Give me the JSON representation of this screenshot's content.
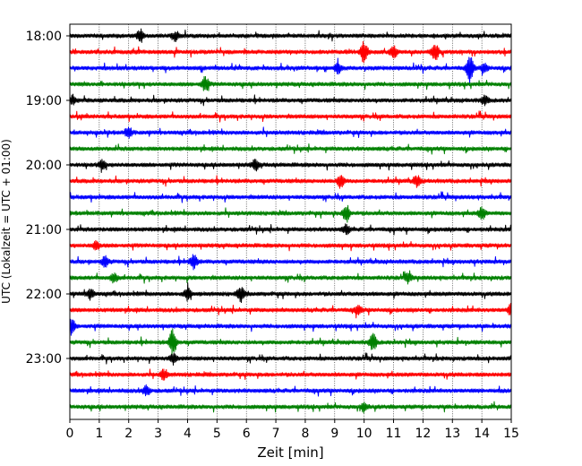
{
  "chart_data": {
    "type": "line",
    "title": "",
    "xlabel": "Zeit  [min]",
    "ylabel": "UTC (Lokalzeit = UTC + 01:00)",
    "xlim": [
      0,
      15
    ],
    "xticks": [
      0,
      1,
      2,
      3,
      4,
      5,
      6,
      7,
      8,
      9,
      10,
      11,
      12,
      13,
      14,
      15
    ],
    "x_grid": true,
    "y_grid": false,
    "y_tick_labels": [
      "18:00",
      "19:00",
      "20:00",
      "21:00",
      "22:00",
      "23:00"
    ],
    "trace_start_utc": "18:00",
    "trace_interval_minutes": 15,
    "trace_count": 24,
    "trace_colors": [
      "#000000",
      "#ff0000",
      "#0000ff",
      "#008000"
    ],
    "events": [
      {
        "trace": 0,
        "minute": 2.4,
        "amplitude": 0.7
      },
      {
        "trace": 0,
        "minute": 3.6,
        "amplitude": 0.5
      },
      {
        "trace": 1,
        "minute": 10.0,
        "amplitude": 1.3
      },
      {
        "trace": 1,
        "minute": 11.0,
        "amplitude": 0.6
      },
      {
        "trace": 1,
        "minute": 12.4,
        "amplitude": 1.2
      },
      {
        "trace": 2,
        "minute": 9.1,
        "amplitude": 0.7
      },
      {
        "trace": 2,
        "minute": 13.6,
        "amplitude": 1.6
      },
      {
        "trace": 2,
        "minute": 14.1,
        "amplitude": 0.5
      },
      {
        "trace": 3,
        "minute": 4.6,
        "amplitude": 0.9
      },
      {
        "trace": 4,
        "minute": 0.1,
        "amplitude": 0.5
      },
      {
        "trace": 4,
        "minute": 14.1,
        "amplitude": 0.5
      },
      {
        "trace": 6,
        "minute": 2.0,
        "amplitude": 0.6
      },
      {
        "trace": 8,
        "minute": 1.1,
        "amplitude": 0.5
      },
      {
        "trace": 8,
        "minute": 6.3,
        "amplitude": 0.6
      },
      {
        "trace": 9,
        "minute": 9.2,
        "amplitude": 0.8
      },
      {
        "trace": 9,
        "minute": 11.8,
        "amplitude": 0.6
      },
      {
        "trace": 11,
        "minute": 9.4,
        "amplitude": 1.0
      },
      {
        "trace": 11,
        "minute": 14.0,
        "amplitude": 0.7
      },
      {
        "trace": 12,
        "minute": 9.4,
        "amplitude": 0.5
      },
      {
        "trace": 13,
        "minute": 0.9,
        "amplitude": 0.5
      },
      {
        "trace": 14,
        "minute": 1.2,
        "amplitude": 0.6
      },
      {
        "trace": 14,
        "minute": 4.2,
        "amplitude": 0.9
      },
      {
        "trace": 15,
        "minute": 1.5,
        "amplitude": 0.5
      },
      {
        "trace": 15,
        "minute": 11.5,
        "amplitude": 0.5
      },
      {
        "trace": 16,
        "minute": 0.7,
        "amplitude": 0.6
      },
      {
        "trace": 16,
        "minute": 4.0,
        "amplitude": 0.7
      },
      {
        "trace": 16,
        "minute": 5.8,
        "amplitude": 0.9
      },
      {
        "trace": 17,
        "minute": 9.8,
        "amplitude": 0.5
      },
      {
        "trace": 17,
        "minute": 15.0,
        "amplitude": 0.7
      },
      {
        "trace": 18,
        "minute": 0.05,
        "amplitude": 1.0
      },
      {
        "trace": 19,
        "minute": 3.5,
        "amplitude": 1.6
      },
      {
        "trace": 19,
        "minute": 10.3,
        "amplitude": 1.0
      },
      {
        "trace": 20,
        "minute": 3.5,
        "amplitude": 0.6
      },
      {
        "trace": 21,
        "minute": 3.2,
        "amplitude": 0.6
      },
      {
        "trace": 22,
        "minute": 2.6,
        "amplitude": 0.6
      },
      {
        "trace": 23,
        "minute": 10.0,
        "amplitude": 0.5
      }
    ]
  }
}
